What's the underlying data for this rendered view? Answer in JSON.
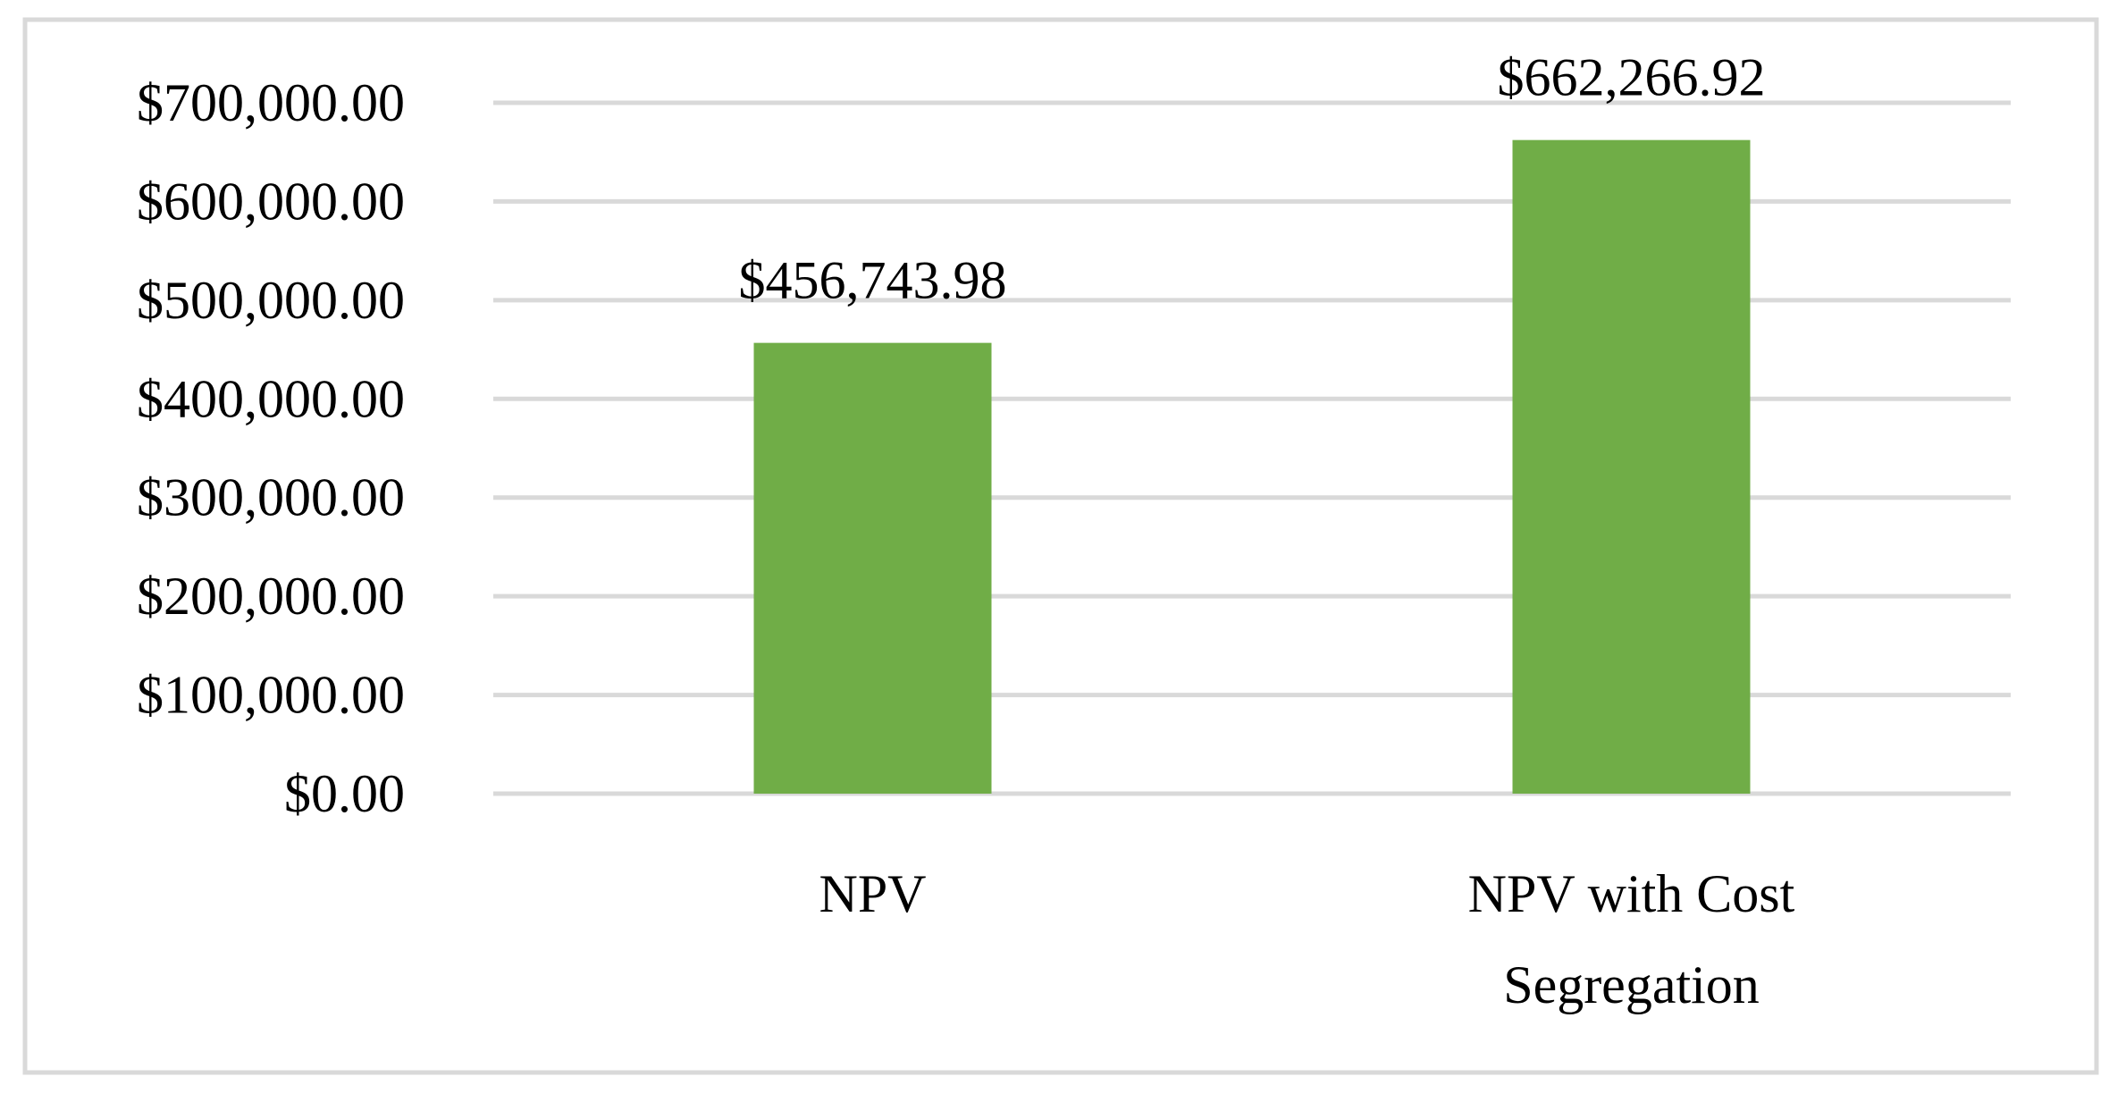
{
  "chart_data": {
    "type": "bar",
    "title": "",
    "xlabel": "",
    "ylabel": "",
    "categories": [
      "NPV",
      "NPV with Cost Segregation"
    ],
    "category_lines": [
      [
        "NPV"
      ],
      [
        "NPV with Cost",
        "Segregation"
      ]
    ],
    "values": [
      456743.98,
      662266.92
    ],
    "data_labels": [
      "$456,743.98",
      "$662,266.92"
    ],
    "ylim": [
      0,
      700000
    ],
    "yticks": [
      0,
      100000,
      200000,
      300000,
      400000,
      500000,
      600000,
      700000
    ],
    "ytick_labels": [
      "$0.00",
      "$100,000.00",
      "$200,000.00",
      "$300,000.00",
      "$400,000.00",
      "$500,000.00",
      "$600,000.00",
      "$700,000.00"
    ],
    "grid": true,
    "legend": "none",
    "colors": {
      "bar": "#70AD47",
      "grid": "#D9D9D9",
      "border": "#D9D9D9",
      "text": "#000000"
    }
  }
}
